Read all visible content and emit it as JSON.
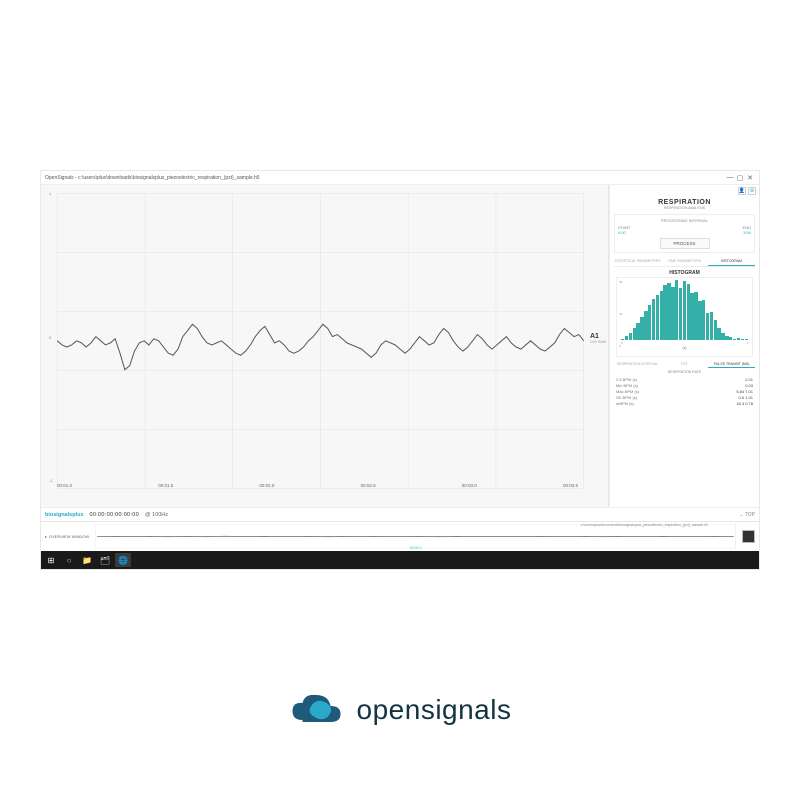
{
  "window": {
    "app": "OpenSignals",
    "title": "OpenSignals - c:\\users\\plux\\downloads\\biosignalsplux_piezoelectric_respiration_(pzt)_sample.h5",
    "minimize": "—",
    "maximize": "▢",
    "close": "✕"
  },
  "colors": {
    "accent": "#2aa8c7",
    "hist_bar": "#34b0a8",
    "grid": "#e6e6e6",
    "signal": "#5a5a5a",
    "bg_chart": "#f7f7f7",
    "text_muted": "#888888",
    "taskbar": "#1a1a1a"
  },
  "chart": {
    "channel_label": "A1",
    "channel_sub": "CH1 RAW",
    "x_ticks": [
      "00:01.0",
      "00:01.5",
      "00:02.0",
      "00:02.5",
      "00:03.0",
      "00:03.5"
    ],
    "y_ticks": [
      "1",
      "",
      "0",
      "",
      "-1"
    ],
    "signal_points": [
      0.5,
      0.48,
      0.47,
      0.48,
      0.5,
      0.49,
      0.47,
      0.49,
      0.52,
      0.5,
      0.48,
      0.49,
      0.51,
      0.44,
      0.36,
      0.38,
      0.45,
      0.49,
      0.5,
      0.48,
      0.51,
      0.5,
      0.47,
      0.44,
      0.43,
      0.46,
      0.52,
      0.55,
      0.58,
      0.56,
      0.52,
      0.49,
      0.48,
      0.49,
      0.5,
      0.48,
      0.46,
      0.44,
      0.43,
      0.45,
      0.48,
      0.52,
      0.55,
      0.57,
      0.53,
      0.49,
      0.5,
      0.48,
      0.45,
      0.44,
      0.45,
      0.47,
      0.5,
      0.52,
      0.55,
      0.58,
      0.56,
      0.52,
      0.53,
      0.51,
      0.49,
      0.48,
      0.47,
      0.46,
      0.44,
      0.42,
      0.44,
      0.48,
      0.5,
      0.49,
      0.48,
      0.46,
      0.44,
      0.46,
      0.49,
      0.52,
      0.5,
      0.48,
      0.49,
      0.53,
      0.56,
      0.54,
      0.5,
      0.47,
      0.45,
      0.47,
      0.5,
      0.53,
      0.51,
      0.48,
      0.46,
      0.48,
      0.5,
      0.52,
      0.49,
      0.47,
      0.46,
      0.48,
      0.5,
      0.48,
      0.46,
      0.45,
      0.47,
      0.49,
      0.53,
      0.56,
      0.54,
      0.52,
      0.53,
      0.5
    ]
  },
  "footer": {
    "logo": "biosignalsplux",
    "timecode": "00:00:00:00:00:00",
    "rate": "100Hz"
  },
  "side": {
    "title": "RESPIRATION",
    "subtitle": "RESPIRATION ANALYSIS",
    "interval_label": "PROCESSING INTERVAL",
    "start_label": "START",
    "start_value": "0:00",
    "end_label": "END",
    "end_value": "3:50",
    "process_btn": "PROCESS",
    "tabs": [
      "STATISTICAL PARAMETERS",
      "TIME PARAMETERS",
      "HISTOGRAM"
    ],
    "hist_title": "HISTOGRAM",
    "hist_values": [
      2,
      6,
      10,
      18,
      26,
      34,
      44,
      52,
      62,
      68,
      74,
      82,
      86,
      80,
      90,
      78,
      88,
      84,
      70,
      72,
      58,
      60,
      40,
      42,
      30,
      18,
      10,
      6,
      4,
      2,
      3,
      2,
      2
    ],
    "hist_y_ticks": [
      "60",
      "40",
      "0"
    ],
    "hist_x_ticks": [
      "0",
      "4"
    ],
    "hist_xlabel": "(s)",
    "metric_tabs": [
      "RESPIRATION INTERVAL",
      "PZT",
      "PULSE TRANSIT (MS)"
    ],
    "metrics_header": "RESPIRATION RATE",
    "metrics": [
      {
        "k": "2.5 BPM (s)",
        "v": "2.01"
      },
      {
        "k": "Min BPM (s)",
        "v": "0.03"
      },
      {
        "k": "Max BPM (s)",
        "v": "5.84 7.01"
      },
      {
        "k": "SD BPM (s)",
        "v": "0.6 1.01"
      },
      {
        "k": "mBPM (s)",
        "v": "18.3 0.78"
      }
    ]
  },
  "overview": {
    "label_left": "OVERVIEW WINDOW",
    "mid_label": "00:00.0",
    "path_label": "c:\\users\\plux\\documents\\biosignalsplux_piezoelectric_respiration_(pzt)_sample.h5",
    "signal_points": [
      0.5,
      0.5,
      0.49,
      0.5,
      0.49,
      0.5,
      0.5,
      0.49,
      0.51,
      0.5,
      0.49,
      0.48,
      0.49,
      0.5,
      0.51,
      0.5,
      0.49,
      0.48,
      0.5,
      0.51,
      0.52,
      0.51,
      0.5,
      0.49,
      0.5,
      0.5,
      0.51,
      0.5,
      0.49,
      0.5,
      0.5,
      0.49,
      0.5,
      0.51,
      0.5,
      0.49,
      0.48,
      0.5,
      0.51,
      0.5,
      0.49,
      0.5,
      0.5,
      0.51,
      0.5,
      0.49,
      0.5,
      0.5,
      0.49,
      0.5,
      0.51,
      0.5,
      0.49,
      0.48,
      0.49,
      0.5,
      0.51,
      0.5,
      0.49,
      0.5,
      0.5,
      0.5,
      0.49,
      0.5,
      0.51,
      0.5,
      0.49,
      0.5,
      0.5,
      0.51,
      0.5,
      0.49,
      0.5,
      0.5,
      0.49,
      0.5,
      0.51,
      0.5,
      0.49,
      0.48,
      0.5,
      0.51,
      0.5,
      0.49,
      0.5,
      0.5,
      0.49,
      0.5,
      0.51,
      0.5,
      0.49,
      0.5,
      0.5,
      0.5,
      0.49,
      0.5,
      0.51,
      0.5,
      0.49,
      0.5
    ],
    "play_icon": "■"
  },
  "taskbar": {
    "items": [
      "⊞",
      "○",
      "📁",
      "🗂",
      "🌐"
    ]
  },
  "brand": {
    "text": "opensignals"
  }
}
